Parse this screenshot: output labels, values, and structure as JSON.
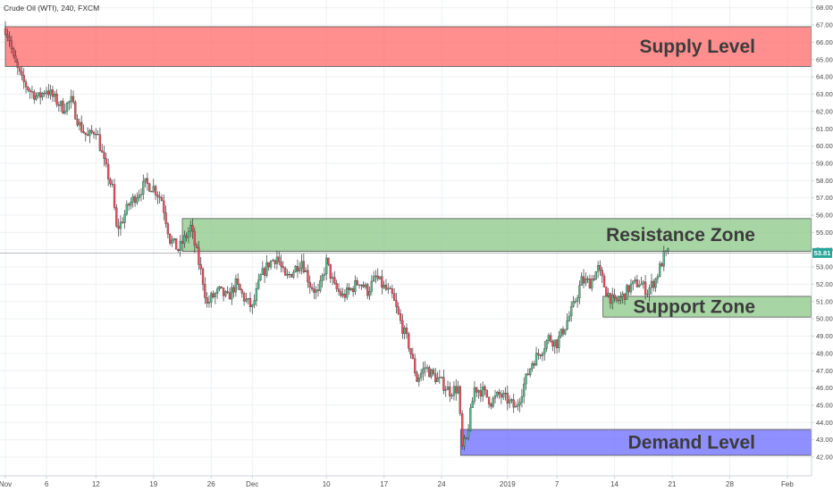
{
  "header": {
    "symbol_title": "Crude Oil (WTI), 240, FXCM"
  },
  "colors": {
    "up": "#53b987",
    "down": "#eb4d5c",
    "wick": "#333333",
    "supply": "#ff6e6e",
    "resistance": "#8fc98b",
    "support": "#8fc98b",
    "demand": "#6f6fff",
    "price_line": "#9aa0a6",
    "price_tag": "#26a69a",
    "grid": "#eef0f3",
    "axis": "#cfd3d8"
  },
  "chart_data": {
    "type": "candlestick",
    "title": "Crude Oil (WTI), 240, FXCM",
    "x_range_days": [
      0,
      95
    ],
    "ylim": [
      41.5,
      68.2
    ],
    "grid": true,
    "y_ticks": [
      "42.00",
      "43.00",
      "44.00",
      "45.00",
      "46.00",
      "47.00",
      "48.00",
      "49.00",
      "50.00",
      "51.00",
      "52.00",
      "53.00",
      "54.00",
      "55.00",
      "56.00",
      "57.00",
      "58.00",
      "59.00",
      "60.00",
      "61.00",
      "62.00",
      "63.00",
      "64.00",
      "65.00",
      "66.00",
      "67.00",
      "68.00"
    ],
    "x_ticks": [
      {
        "day": 0,
        "label": "Nov"
      },
      {
        "day": 5,
        "label": "6"
      },
      {
        "day": 11,
        "label": "12"
      },
      {
        "day": 18,
        "label": "19"
      },
      {
        "day": 25,
        "label": "26"
      },
      {
        "day": 30,
        "label": "Dec"
      },
      {
        "day": 39,
        "label": "10"
      },
      {
        "day": 46,
        "label": "17"
      },
      {
        "day": 53,
        "label": "24"
      },
      {
        "day": 61,
        "label": "2019"
      },
      {
        "day": 67,
        "label": "7"
      },
      {
        "day": 74,
        "label": "14"
      },
      {
        "day": 81,
        "label": "21"
      },
      {
        "day": 88,
        "label": "28"
      },
      {
        "day": 95,
        "label": "Feb"
      }
    ],
    "last_price": {
      "value": 53.81,
      "label": "53.81"
    },
    "zones": [
      {
        "name": "Supply Level",
        "label": "Supply Level",
        "from_day": 0,
        "to_day": 99,
        "low": 64.6,
        "high": 66.9,
        "color": "#ff6e6e"
      },
      {
        "name": "Resistance Zone",
        "label": "Resistance Zone",
        "from_day": 21.5,
        "to_day": 99,
        "low": 53.9,
        "high": 55.8,
        "color": "#8fc98b"
      },
      {
        "name": "Support Zone",
        "label": "Support Zone",
        "from_day": 72.6,
        "to_day": 99,
        "low": 50.1,
        "high": 51.3,
        "color": "#8fc98b"
      },
      {
        "name": "Demand Level",
        "label": "Demand Level",
        "from_day": 55.3,
        "to_day": 99,
        "low": 42.1,
        "high": 43.6,
        "color": "#6f6fff"
      }
    ],
    "anchors": [
      [
        0,
        66.8
      ],
      [
        0.5,
        66.2
      ],
      [
        1,
        65.0
      ],
      [
        1.5,
        64.4
      ],
      [
        2,
        63.8
      ],
      [
        3,
        63.2
      ],
      [
        4,
        62.8
      ],
      [
        5,
        63.3
      ],
      [
        6,
        62.7
      ],
      [
        7,
        62.2
      ],
      [
        8,
        62.6
      ],
      [
        9,
        61.2
      ],
      [
        10,
        60.5
      ],
      [
        11,
        61.0
      ],
      [
        12,
        59.0
      ],
      [
        13,
        57.5
      ],
      [
        13.5,
        55.2
      ],
      [
        14,
        55.5
      ],
      [
        15,
        56.6
      ],
      [
        16,
        57.2
      ],
      [
        17,
        57.8
      ],
      [
        18,
        57.6
      ],
      [
        19,
        56.9
      ],
      [
        20,
        54.6
      ],
      [
        21,
        54.0
      ],
      [
        22,
        54.8
      ],
      [
        22.5,
        55.3
      ],
      [
        23,
        54.3
      ],
      [
        24,
        52.2
      ],
      [
        24.5,
        50.8
      ],
      [
        25,
        51.2
      ],
      [
        26,
        51.6
      ],
      [
        27,
        51.2
      ],
      [
        28,
        52.0
      ],
      [
        29,
        51.2
      ],
      [
        30,
        50.6
      ],
      [
        31,
        52.4
      ],
      [
        32,
        53.2
      ],
      [
        33,
        53.6
      ],
      [
        34,
        52.3
      ],
      [
        35,
        52.8
      ],
      [
        36,
        53.4
      ],
      [
        37,
        52.0
      ],
      [
        38,
        51.4
      ],
      [
        39,
        53.3
      ],
      [
        40,
        51.8
      ],
      [
        41,
        51.3
      ],
      [
        42,
        51.7
      ],
      [
        43,
        52.2
      ],
      [
        44,
        51.6
      ],
      [
        45,
        52.4
      ],
      [
        46,
        51.8
      ],
      [
        47,
        51.3
      ],
      [
        48,
        49.8
      ],
      [
        49,
        48.5
      ],
      [
        50,
        46.5
      ],
      [
        51,
        47.2
      ],
      [
        52,
        46.7
      ],
      [
        53,
        46.3
      ],
      [
        54,
        45.8
      ],
      [
        55,
        46.0
      ],
      [
        55.5,
        42.5
      ],
      [
        56,
        43.0
      ],
      [
        57,
        46.0
      ],
      [
        58,
        45.8
      ],
      [
        59,
        45.2
      ],
      [
        60,
        45.6
      ],
      [
        61,
        45.3
      ],
      [
        62,
        44.8
      ],
      [
        63,
        46.2
      ],
      [
        64,
        47.5
      ],
      [
        65,
        48.1
      ],
      [
        66,
        48.9
      ],
      [
        67,
        48.6
      ],
      [
        68,
        49.6
      ],
      [
        69,
        50.7
      ],
      [
        70,
        52.2
      ],
      [
        71,
        52.1
      ],
      [
        72,
        52.9
      ],
      [
        73,
        51.6
      ],
      [
        74,
        50.9
      ],
      [
        75,
        51.3
      ],
      [
        76,
        51.9
      ],
      [
        77,
        52.1
      ],
      [
        78,
        51.6
      ],
      [
        79,
        52.3
      ],
      [
        80,
        53.6
      ],
      [
        80.5,
        53.8
      ]
    ]
  }
}
